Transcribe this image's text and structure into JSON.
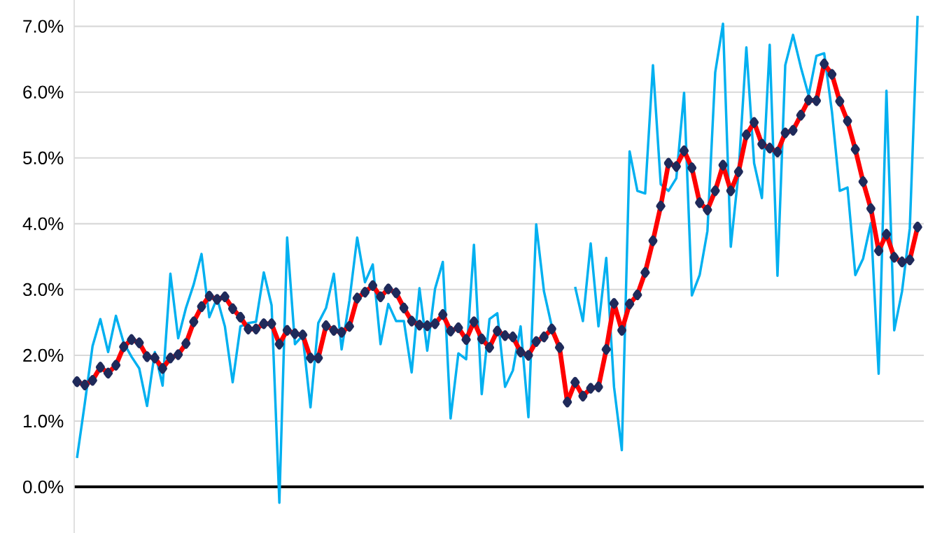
{
  "chart_data": {
    "type": "line",
    "categories": [
      null,
      null,
      null,
      null,
      null,
      null,
      null,
      null,
      null,
      null,
      null,
      null,
      null,
      null,
      null,
      null,
      null,
      null,
      null,
      null,
      null,
      null,
      null,
      null,
      null,
      null,
      null,
      null,
      null,
      null,
      null,
      null,
      null,
      null,
      null,
      null,
      null,
      null,
      null,
      null,
      null,
      null,
      null,
      null,
      null,
      null,
      null,
      null,
      null,
      null,
      null,
      null,
      null,
      null,
      null,
      null,
      null,
      null,
      null,
      null,
      null,
      null,
      null,
      null,
      null,
      null,
      null,
      null,
      null,
      null,
      null,
      null,
      null,
      null,
      null,
      null,
      null,
      null,
      null,
      null,
      null,
      null,
      null,
      null,
      null,
      null,
      null,
      null,
      null,
      null,
      null,
      null,
      null,
      null,
      null,
      null,
      null,
      null,
      null,
      null,
      null,
      null,
      null,
      null,
      null,
      null,
      null,
      null,
      null
    ],
    "series": [
      {
        "color": "#00b0f0",
        "marker": "none",
        "values": [
          0.44,
          1.27,
          2.14,
          2.55,
          2.05,
          2.6,
          2.19,
          1.98,
          1.8,
          1.23,
          2.05,
          1.54,
          3.24,
          2.26,
          2.72,
          3.08,
          3.54,
          2.58,
          2.87,
          2.44,
          1.59,
          2.44,
          2.49,
          2.51,
          3.26,
          2.76,
          -0.24,
          3.79,
          2.17,
          2.3,
          1.21,
          2.49,
          2.72,
          3.24,
          2.09,
          2.83,
          3.79,
          3.11,
          3.38,
          2.17,
          2.78,
          2.52,
          2.52,
          1.74,
          3.02,
          2.07,
          3.01,
          3.42,
          1.04,
          2.03,
          1.94,
          3.68,
          1.41,
          2.55,
          2.64,
          1.52,
          1.77,
          2.44,
          1.06,
          3.99,
          2.97,
          2.44,
          null,
          null,
          3.04,
          2.52,
          3.7,
          2.44,
          3.48,
          1.52,
          0.56,
          5.1,
          4.5,
          4.46,
          6.41,
          4.6,
          4.5,
          4.69,
          5.99,
          2.91,
          3.22,
          3.89,
          6.3,
          7.04,
          3.65,
          4.78,
          6.68,
          4.92,
          4.39,
          6.72,
          3.21,
          6.41,
          6.87,
          6.38,
          5.95,
          6.55,
          6.59,
          5.7,
          4.5,
          4.55,
          3.22,
          3.47,
          4.01,
          1.72,
          6.02,
          2.38,
          2.97,
          3.93,
          7.16
        ]
      },
      {
        "color": "#ff0000",
        "marker": "diamond",
        "values": [
          1.6,
          1.55,
          1.62,
          1.82,
          1.73,
          1.85,
          2.13,
          2.24,
          2.19,
          1.98,
          1.96,
          1.8,
          1.96,
          2.01,
          2.18,
          2.51,
          2.74,
          2.9,
          2.85,
          2.89,
          2.71,
          2.58,
          2.4,
          2.4,
          2.48,
          2.48,
          2.17,
          2.38,
          2.33,
          2.31,
          1.96,
          1.96,
          2.45,
          2.38,
          2.35,
          2.44,
          2.87,
          2.96,
          3.06,
          2.89,
          3.01,
          2.95,
          2.72,
          2.52,
          2.46,
          2.45,
          2.48,
          2.62,
          2.37,
          2.42,
          2.24,
          2.51,
          2.25,
          2.12,
          2.37,
          2.3,
          2.28,
          2.05,
          2.0,
          2.21,
          2.28,
          2.4,
          2.12,
          1.29,
          1.59,
          1.38,
          1.5,
          1.52,
          2.09,
          2.79,
          2.38,
          2.78,
          2.92,
          3.26,
          3.74,
          4.27,
          4.92,
          4.87,
          5.11,
          4.85,
          4.32,
          4.21,
          4.5,
          4.89,
          4.5,
          4.79,
          5.35,
          5.54,
          5.21,
          5.15,
          5.09,
          5.38,
          5.42,
          5.65,
          5.88,
          5.87,
          6.43,
          6.27,
          5.86,
          5.56,
          5.13,
          4.64,
          4.23,
          3.59,
          3.84,
          3.49,
          3.42,
          3.45,
          3.95
        ]
      }
    ],
    "ylim": [
      -0.7,
      7.4
    ],
    "yticks": [
      {
        "value": 0,
        "label": "0.0%"
      },
      {
        "value": 1,
        "label": "1.0%"
      },
      {
        "value": 2,
        "label": "2.0%"
      },
      {
        "value": 3,
        "label": "3.0%"
      },
      {
        "value": 4,
        "label": "4.0%"
      },
      {
        "value": 5,
        "label": "5.0%"
      },
      {
        "value": 6,
        "label": "6.0%"
      },
      {
        "value": 7,
        "label": "7.0%"
      }
    ],
    "grid": "y",
    "tick_labels": "y"
  }
}
